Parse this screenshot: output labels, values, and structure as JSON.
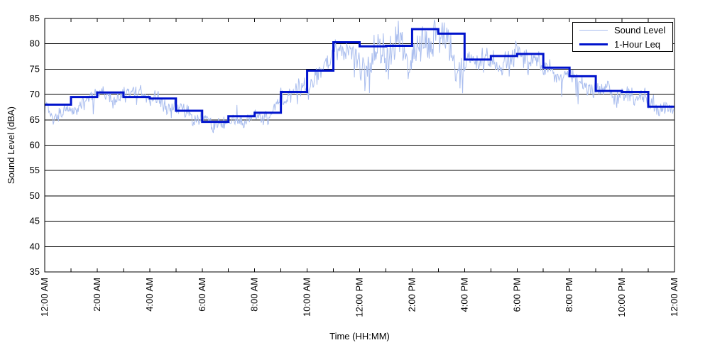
{
  "figure": {
    "xlabel": "Time (HH:MM)",
    "ylabel": "Sound Level (dBA)"
  },
  "chart_data": {
    "type": "line",
    "title": "",
    "xlabel": "Time (HH:MM)",
    "ylabel": "Sound Level (dBA)",
    "xlim_hours": [
      0,
      24
    ],
    "ylim": [
      35,
      85
    ],
    "yticks": [
      35,
      40,
      45,
      50,
      55,
      60,
      65,
      70,
      75,
      80,
      85
    ],
    "xtick_minor_interval_hours": 1,
    "xtick_labels": [
      {
        "hour": 0,
        "label": "12:00 AM"
      },
      {
        "hour": 2,
        "label": "2:00 AM"
      },
      {
        "hour": 4,
        "label": "4:00 AM"
      },
      {
        "hour": 6,
        "label": "6:00 AM"
      },
      {
        "hour": 8,
        "label": "8:00 AM"
      },
      {
        "hour": 10,
        "label": "10:00 AM"
      },
      {
        "hour": 12,
        "label": "12:00 PM"
      },
      {
        "hour": 14,
        "label": "2:00 PM"
      },
      {
        "hour": 16,
        "label": "4:00 PM"
      },
      {
        "hour": 18,
        "label": "6:00 PM"
      },
      {
        "hour": 20,
        "label": "8:00 PM"
      },
      {
        "hour": 22,
        "label": "10:00 PM"
      },
      {
        "hour": 24,
        "label": "12:00 AM"
      }
    ],
    "grid": "horizontal",
    "grid_color": "#000000",
    "axis_color": "#000000",
    "legend_position": "top-right",
    "series": [
      {
        "name": "Sound Level",
        "type": "noisy-line",
        "color": "#a9bdee",
        "line_width": 1,
        "synthesized_from": "hourly Leq baseline plus noise (trace too dense to digitize point-by-point)",
        "noise": {
          "seed": 12,
          "interval_minutes": 1.5,
          "bias_factor": -0.25,
          "amplitudes_dBA": [
            2.2,
            2.0,
            2.0,
            2.0,
            2.2,
            2.0,
            1.7,
            1.6,
            1.7,
            2.4,
            2.6,
            2.6,
            4.4,
            4.6,
            4.8,
            5.2,
            3.4,
            3.0,
            2.6,
            2.4,
            2.4,
            2.0,
            2.4,
            2.2
          ],
          "clamp_dBA": [
            61,
            85
          ]
        }
      },
      {
        "name": "1-Hour Leq",
        "type": "step",
        "color": "#0013cc",
        "line_width": 3,
        "hours": [
          0,
          1,
          2,
          3,
          4,
          5,
          6,
          7,
          8,
          9,
          10,
          11,
          12,
          13,
          14,
          15,
          16,
          17,
          18,
          19,
          20,
          21,
          22,
          23
        ],
        "values_dBA": [
          68.0,
          69.5,
          70.4,
          69.5,
          69.2,
          66.8,
          64.6,
          65.7,
          66.4,
          70.5,
          74.7,
          80.3,
          79.5,
          79.6,
          82.9,
          82.0,
          76.9,
          77.6,
          78.0,
          75.3,
          73.6,
          70.7,
          70.5,
          67.6
        ]
      }
    ]
  }
}
